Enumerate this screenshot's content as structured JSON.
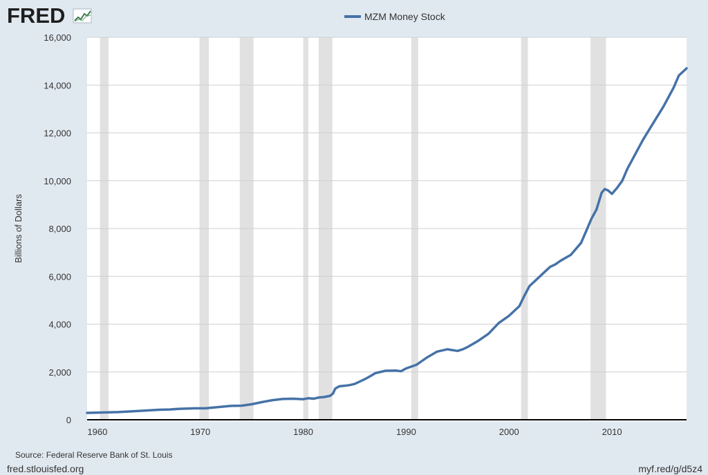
{
  "brand": {
    "logo_text": "FRED"
  },
  "legend": {
    "label": "MZM Money Stock",
    "color": "#4572a7"
  },
  "footer": {
    "source": "Source: Federal Reserve Bank of St. Louis",
    "site": "fred.stlouisfed.org",
    "short_link": "myf.red/g/d5z4"
  },
  "colors": {
    "background": "#e1e9f0",
    "plot_bg": "#ffffff",
    "recession": "#e1e1e1",
    "line": "#4572a7",
    "grid": "#cfcfcf"
  },
  "chart_data": {
    "type": "line",
    "title": "",
    "xlabel": "",
    "ylabel": "Billions of Dollars",
    "xlim": [
      1959.0,
      2017.25
    ],
    "ylim": [
      0,
      16000
    ],
    "x_ticks": [
      1960,
      1970,
      1980,
      1990,
      2000,
      2010
    ],
    "x_tick_labels": [
      "1960",
      "1970",
      "1980",
      "1990",
      "2000",
      "2010"
    ],
    "y_ticks": [
      0,
      2000,
      4000,
      6000,
      8000,
      10000,
      12000,
      14000,
      16000
    ],
    "y_tick_labels": [
      "0",
      "2,000",
      "4,000",
      "6,000",
      "8,000",
      "10,000",
      "12,000",
      "14,000",
      "16,000"
    ],
    "grid": true,
    "legend_position": "top-center",
    "recessions": [
      [
        1960.25,
        1961.08
      ],
      [
        1969.92,
        1970.83
      ],
      [
        1973.83,
        1975.17
      ],
      [
        1980.0,
        1980.5
      ],
      [
        1981.5,
        1982.83
      ],
      [
        1990.5,
        1991.17
      ],
      [
        2001.17,
        2001.83
      ],
      [
        2007.92,
        2009.42
      ]
    ],
    "series": [
      {
        "name": "MZM Money Stock",
        "x": [
          1959.0,
          1962,
          1964,
          1966,
          1967,
          1968,
          1969.5,
          1970.5,
          1972,
          1973,
          1974,
          1975,
          1976,
          1977,
          1978,
          1979,
          1980,
          1980.5,
          1981,
          1981.5,
          1982,
          1982.6,
          1982.9,
          1983.1,
          1983.5,
          1984,
          1984.5,
          1985,
          1986,
          1986.5,
          1987,
          1988,
          1989,
          1989.5,
          1990,
          1991,
          1992,
          1993,
          1994,
          1995,
          1995.5,
          1996,
          1997,
          1998,
          1999,
          2000,
          2001,
          2001.5,
          2002,
          2003,
          2003.5,
          2004,
          2004.5,
          2005,
          2006,
          2007,
          2007.5,
          2008,
          2008.5,
          2009,
          2009.3,
          2009.6,
          2010,
          2010.5,
          2011,
          2011.5,
          2012,
          2013,
          2014,
          2015,
          2016,
          2016.5,
          2017.25
        ],
        "y": [
          290,
          320,
          370,
          420,
          430,
          460,
          480,
          480,
          540,
          580,
          590,
          650,
          740,
          820,
          870,
          880,
          860,
          900,
          880,
          930,
          950,
          1000,
          1100,
          1300,
          1400,
          1420,
          1450,
          1500,
          1700,
          1820,
          1950,
          2050,
          2060,
          2030,
          2150,
          2300,
          2600,
          2850,
          2950,
          2880,
          2950,
          3050,
          3300,
          3600,
          4050,
          4350,
          4750,
          5200,
          5600,
          6000,
          6200,
          6400,
          6500,
          6650,
          6900,
          7400,
          7900,
          8400,
          8800,
          9500,
          9650,
          9600,
          9450,
          9700,
          10000,
          10500,
          10900,
          11700,
          12400,
          13100,
          13900,
          14400,
          14700
        ]
      }
    ]
  }
}
